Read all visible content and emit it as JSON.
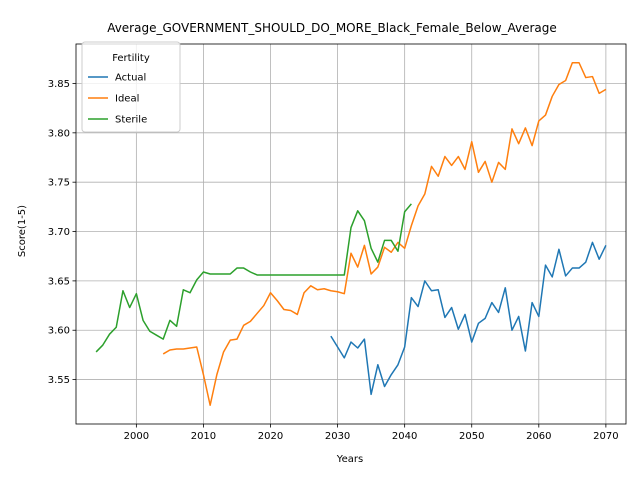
{
  "chart_data": {
    "type": "line",
    "title": "Average_GOVERNMENT_SHOULD_DO_MORE_Black_Female_Below_Average",
    "xlabel": "Years",
    "ylabel": "Score(1-5)",
    "xlim": [
      1991,
      2073
    ],
    "ylim": [
      3.505,
      3.89
    ],
    "xticks": [
      2000,
      2010,
      2020,
      2030,
      2040,
      2050,
      2060,
      2070
    ],
    "yticks": [
      3.55,
      3.6,
      3.65,
      3.7,
      3.75,
      3.8,
      3.85
    ],
    "grid": true,
    "legend": {
      "title": "Fertility",
      "placement": "top-left"
    },
    "series": [
      {
        "name": "Actual",
        "color": "#1f77b4",
        "x": [
          2029,
          2030,
          2031,
          2032,
          2033,
          2034,
          2035,
          2036,
          2037,
          2038,
          2039,
          2040,
          2041,
          2042,
          2043,
          2044,
          2045,
          2046,
          2047,
          2048,
          2049,
          2050,
          2051,
          2052,
          2053,
          2054,
          2055,
          2056,
          2057,
          2058,
          2059,
          2060,
          2061,
          2062,
          2063,
          2064,
          2065,
          2066,
          2067,
          2068,
          2069,
          2070
        ],
        "y": [
          3.594,
          3.583,
          3.572,
          3.588,
          3.582,
          3.591,
          3.535,
          3.565,
          3.543,
          3.555,
          3.565,
          3.583,
          3.633,
          3.624,
          3.65,
          3.64,
          3.641,
          3.613,
          3.623,
          3.601,
          3.616,
          3.588,
          3.607,
          3.612,
          3.628,
          3.618,
          3.643,
          3.6,
          3.614,
          3.579,
          3.628,
          3.614,
          3.666,
          3.654,
          3.682,
          3.655,
          3.663,
          3.663,
          3.669,
          3.689,
          3.672,
          3.686
        ]
      },
      {
        "name": "Ideal",
        "color": "#ff7f0e",
        "x": [
          2004,
          2005,
          2006,
          2007,
          2008,
          2009,
          2010,
          2011,
          2012,
          2013,
          2014,
          2015,
          2016,
          2017,
          2018,
          2019,
          2020,
          2021,
          2022,
          2023,
          2024,
          2025,
          2026,
          2027,
          2028,
          2029,
          2030,
          2031,
          2032,
          2033,
          2034,
          2035,
          2036,
          2037,
          2038,
          2039,
          2040,
          2041,
          2042,
          2043,
          2044,
          2045,
          2046,
          2047,
          2048,
          2049,
          2050,
          2051,
          2052,
          2053,
          2054,
          2055,
          2056,
          2057,
          2058,
          2059,
          2060,
          2061,
          2062,
          2063,
          2064,
          2065,
          2066,
          2067,
          2068,
          2069,
          2070
        ],
        "y": [
          3.576,
          3.58,
          3.581,
          3.581,
          3.582,
          3.583,
          3.555,
          3.524,
          3.555,
          3.578,
          3.59,
          3.591,
          3.605,
          3.609,
          3.617,
          3.625,
          3.638,
          3.63,
          3.621,
          3.62,
          3.616,
          3.638,
          3.645,
          3.641,
          3.642,
          3.64,
          3.639,
          3.637,
          3.678,
          3.664,
          3.686,
          3.657,
          3.664,
          3.684,
          3.679,
          3.689,
          3.683,
          3.706,
          3.726,
          3.738,
          3.766,
          3.756,
          3.776,
          3.767,
          3.776,
          3.763,
          3.791,
          3.76,
          3.771,
          3.75,
          3.77,
          3.763,
          3.804,
          3.789,
          3.805,
          3.787,
          3.812,
          3.818,
          3.837,
          3.849,
          3.853,
          3.871,
          3.871,
          3.856,
          3.857,
          3.84,
          3.844
        ]
      },
      {
        "name": "Sterile",
        "color": "#2ca02c",
        "x": [
          1994,
          1995,
          1996,
          1997,
          1998,
          1999,
          2000,
          2001,
          2002,
          2003,
          2004,
          2005,
          2006,
          2007,
          2008,
          2009,
          2010,
          2011,
          2012,
          2013,
          2014,
          2015,
          2016,
          2017,
          2018,
          2019,
          2020,
          2021,
          2022,
          2023,
          2024,
          2025,
          2026,
          2027,
          2028,
          2029,
          2030,
          2031,
          2032,
          2033,
          2034,
          2035,
          2036,
          2037,
          2038,
          2039,
          2040,
          2041
        ],
        "y": [
          3.578,
          3.585,
          3.596,
          3.603,
          3.64,
          3.623,
          3.637,
          3.61,
          3.599,
          3.595,
          3.591,
          3.61,
          3.604,
          3.641,
          3.638,
          3.651,
          3.659,
          3.657,
          3.657,
          3.657,
          3.657,
          3.663,
          3.663,
          3.659,
          3.656,
          3.656,
          3.656,
          3.656,
          3.656,
          3.656,
          3.656,
          3.656,
          3.656,
          3.656,
          3.656,
          3.656,
          3.656,
          3.656,
          3.704,
          3.721,
          3.711,
          3.683,
          3.669,
          3.691,
          3.691,
          3.68,
          3.72,
          3.728
        ]
      }
    ]
  }
}
